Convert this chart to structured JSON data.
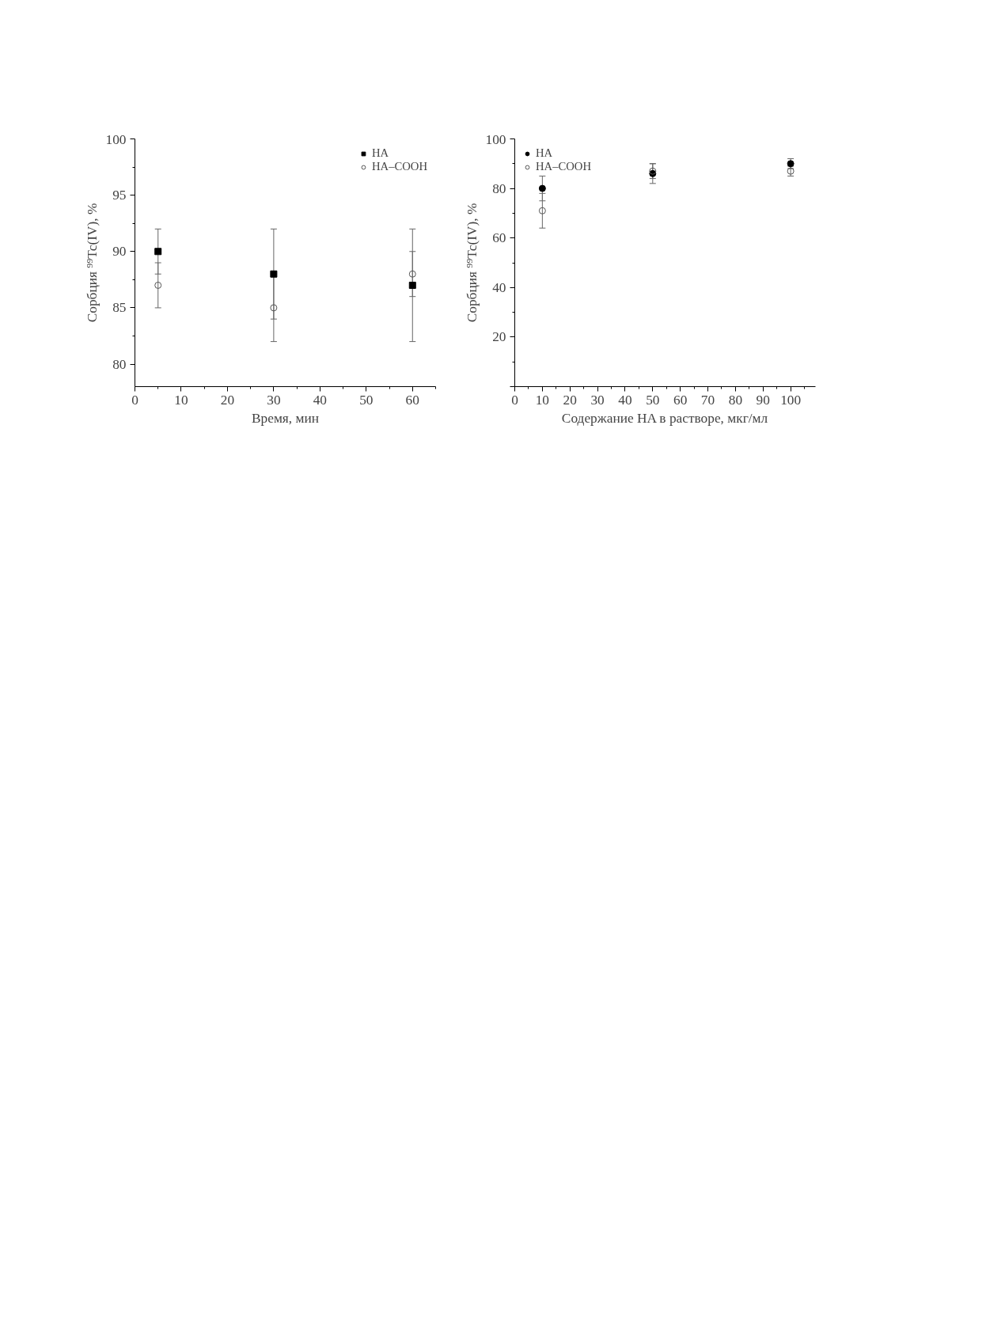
{
  "chart_data": [
    {
      "type": "scatter",
      "xlabel": "Время, мин",
      "ylabel": "Сорбция ⁹⁹Tc(IV), %",
      "x": [
        5,
        30,
        60
      ],
      "xlim": [
        0,
        65
      ],
      "xticks": [
        0,
        10,
        20,
        30,
        40,
        50,
        60
      ],
      "ylim": [
        78,
        100
      ],
      "yticks": [
        80,
        85,
        90,
        95,
        100
      ],
      "legend": "top right",
      "grid": false,
      "series": [
        {
          "name": "HA",
          "color": "#000000",
          "marker": "square",
          "values": [
            90,
            88,
            87
          ],
          "errors": [
            2,
            4,
            5
          ]
        },
        {
          "name": "HA–COOH",
          "color": "#555555",
          "marker": "circle",
          "values": [
            87,
            85,
            88
          ],
          "errors": [
            2,
            3,
            2
          ]
        }
      ]
    },
    {
      "type": "scatter",
      "xlabel": "Содержание HA в растворе, мкг/мл",
      "ylabel": "Сорбция ⁹⁹Tc(IV), %",
      "x": [
        10,
        50,
        100
      ],
      "xlim": [
        0,
        109
      ],
      "xticks": [
        0,
        10,
        20,
        30,
        40,
        50,
        60,
        70,
        80,
        90,
        100
      ],
      "ylim": [
        0,
        100
      ],
      "yticks": [
        {
          "value": 0,
          "label": null
        },
        20,
        40,
        60,
        80,
        100
      ],
      "legend": "top left",
      "grid": false,
      "series": [
        {
          "name": "HA",
          "color": "#000000",
          "marker": "circle",
          "values": [
            80,
            86,
            90
          ],
          "errors": [
            5,
            4,
            2
          ]
        },
        {
          "name": "HA–COOH",
          "color": "#555555",
          "marker": "circle",
          "values": [
            71,
            87,
            87
          ],
          "errors": [
            7,
            3,
            2
          ]
        }
      ]
    }
  ]
}
